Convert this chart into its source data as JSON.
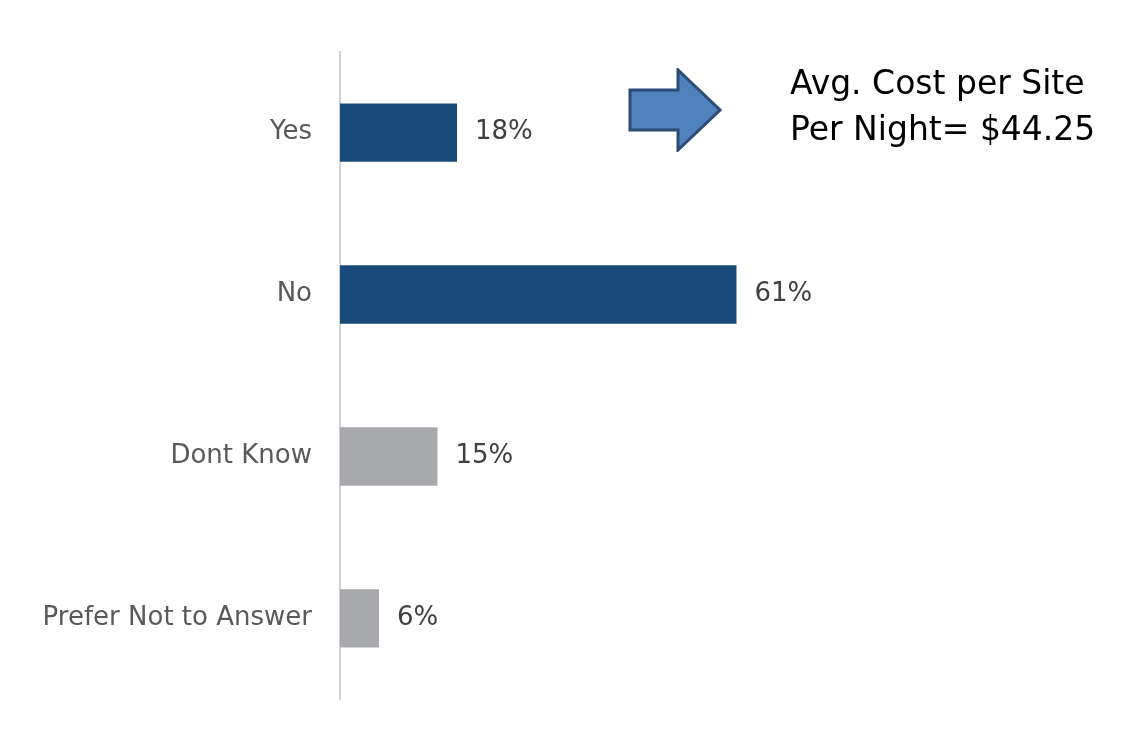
{
  "chart_data": {
    "type": "bar",
    "orientation": "horizontal",
    "categories": [
      "Yes",
      "No",
      "Dont Know",
      "Prefer Not to Answer"
    ],
    "values": [
      18,
      61,
      15,
      6
    ],
    "colors": [
      "#1a4a7a",
      "#1a4a7a",
      "#a7a9ac",
      "#a7a9ac"
    ],
    "value_labels": [
      "18%",
      "61%",
      "15%",
      "6%"
    ],
    "tick_labels": "y",
    "grid": false,
    "legend": false,
    "annotations": [
      "Avg. Cost per Site Per Night= $44.25"
    ]
  }
}
